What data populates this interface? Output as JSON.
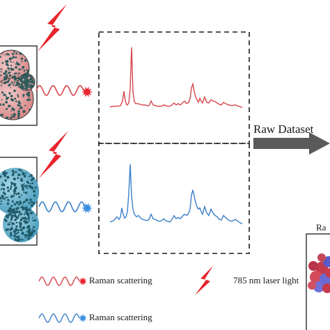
{
  "labels": {
    "raw_dataset": "Raw Dataset",
    "legend_red_scatter": "Raman scattering",
    "legend_laser": "785 nm laser light",
    "legend_blue_scatter": "Raman scattering",
    "right_box_partial": "Ra"
  },
  "colors": {
    "red_spectrum": "#d6454b",
    "blue_spectrum": "#3a7fc7",
    "laser_red": "#e8242c",
    "arrow_gray": "#5a5a5a",
    "dashed_box": "#1a1a1a"
  },
  "icons": [
    "lightning-bolt-icon",
    "wavy-photon-icon",
    "starburst-icon",
    "cell-cluster-icon",
    "molecule-cluster-icon",
    "arrow-right-icon"
  ],
  "spectra": {
    "red": {
      "x": [
        0,
        5,
        10,
        15,
        18,
        20,
        22,
        24,
        25,
        27,
        29,
        31,
        33,
        35,
        37,
        40,
        43,
        46,
        48,
        50,
        53,
        56,
        59,
        62,
        65,
        68,
        71,
        74,
        77,
        80,
        83,
        86,
        89,
        92,
        95,
        98,
        101,
        104,
        107,
        110,
        113,
        115,
        117,
        119,
        121,
        123,
        125,
        127,
        129,
        131,
        133,
        136,
        139,
        142,
        145,
        148,
        151,
        154,
        157,
        160,
        163,
        166,
        170,
        175,
        180,
        185,
        190
      ],
      "y": [
        0.09,
        0.1,
        0.1,
        0.11,
        0.18,
        0.33,
        0.18,
        0.12,
        0.12,
        0.15,
        0.38,
        1.0,
        0.32,
        0.17,
        0.14,
        0.14,
        0.13,
        0.12,
        0.12,
        0.12,
        0.11,
        0.11,
        0.18,
        0.12,
        0.11,
        0.1,
        0.1,
        0.1,
        0.12,
        0.11,
        0.1,
        0.1,
        0.12,
        0.15,
        0.12,
        0.14,
        0.12,
        0.15,
        0.18,
        0.14,
        0.16,
        0.22,
        0.38,
        0.44,
        0.32,
        0.24,
        0.2,
        0.16,
        0.22,
        0.18,
        0.15,
        0.24,
        0.16,
        0.15,
        0.2,
        0.18,
        0.17,
        0.15,
        0.13,
        0.12,
        0.16,
        0.14,
        0.12,
        0.11,
        0.12,
        0.1,
        0.08
      ]
    },
    "blue": {
      "x": [
        0,
        5,
        10,
        13,
        15,
        17,
        19,
        21,
        23,
        25,
        27,
        29,
        31,
        33,
        35,
        38,
        41,
        44,
        47,
        50,
        53,
        56,
        59,
        62,
        65,
        68,
        71,
        74,
        77,
        80,
        83,
        86,
        89,
        92,
        95,
        98,
        101,
        104,
        107,
        110,
        113,
        115,
        117,
        119,
        121,
        123,
        125,
        127,
        129,
        131,
        133,
        136,
        139,
        142,
        145,
        148,
        151,
        154,
        157,
        160,
        163,
        166,
        170,
        175,
        180,
        185,
        190
      ],
      "y": [
        0.1,
        0.12,
        0.18,
        0.14,
        0.18,
        0.32,
        0.22,
        0.16,
        0.18,
        0.26,
        0.55,
        1.0,
        0.5,
        0.3,
        0.22,
        0.18,
        0.2,
        0.16,
        0.14,
        0.13,
        0.12,
        0.14,
        0.22,
        0.15,
        0.14,
        0.12,
        0.11,
        0.12,
        0.15,
        0.12,
        0.11,
        0.1,
        0.14,
        0.2,
        0.15,
        0.17,
        0.15,
        0.19,
        0.22,
        0.2,
        0.24,
        0.3,
        0.52,
        0.6,
        0.5,
        0.4,
        0.34,
        0.3,
        0.32,
        0.26,
        0.22,
        0.34,
        0.24,
        0.2,
        0.3,
        0.24,
        0.2,
        0.18,
        0.14,
        0.13,
        0.2,
        0.17,
        0.13,
        0.11,
        0.14,
        0.1,
        0.07
      ]
    }
  }
}
